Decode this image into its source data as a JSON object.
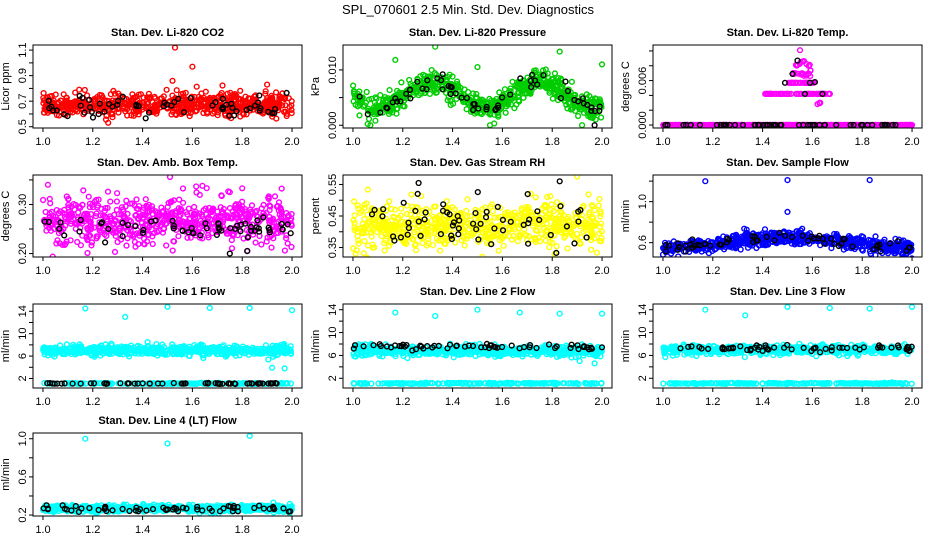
{
  "title": "SPL_070601  2.5 Min. Std. Dev. Diagnostics",
  "chart_data": [
    {
      "type": "scatter",
      "title": "Stan. Dev. Li-820 CO2",
      "ylabel": "Licor ppm",
      "xlim": [
        0.96,
        2.04
      ],
      "ylim": [
        0.49,
        1.14
      ],
      "xticks": [
        1.0,
        1.2,
        1.4,
        1.6,
        1.8,
        2.0
      ],
      "yticks": [
        0.5,
        0.6,
        0.7,
        0.8,
        0.9,
        1.0,
        1.1
      ],
      "yticklabels": {
        "0.5": "0.5",
        "0.7": "0.7",
        "0.9": "0.9",
        "1.1": "1.1"
      },
      "series": [
        {
          "name": "all",
          "color": "#ff0000",
          "clusters": [
            {
              "x": [
                1,
                2
              ],
              "n": 650,
              "mean": 0.67,
              "sd": 0.045
            }
          ],
          "outliers": [
            [
              1.53,
              1.12
            ],
            [
              1.6,
              0.97
            ],
            [
              1.52,
              0.86
            ],
            [
              1.9,
              0.83
            ]
          ]
        },
        {
          "name": "subset",
          "color": "#000000",
          "clusters": [
            {
              "x": [
                1,
                2
              ],
              "n": 60,
              "mean": 0.66,
              "sd": 0.045
            }
          ],
          "outliers": []
        }
      ]
    },
    {
      "type": "scatter",
      "title": "Stan. Dev. Li-820 Pressure",
      "ylabel": "kPa",
      "xlim": [
        0.96,
        2.04
      ],
      "ylim": [
        -0.0005,
        0.0145
      ],
      "xticks": [
        1.0,
        1.2,
        1.4,
        1.6,
        1.8,
        2.0
      ],
      "yticks": [
        0.0,
        0.005,
        0.01
      ],
      "yticklabels": {
        "0": "0.000",
        "0.01": "0.010"
      },
      "series": [
        {
          "name": "all",
          "color": "#00cd00",
          "clusters": [
            {
              "x": [
                1,
                2
              ],
              "n": 650,
              "mean": 0.0055,
              "sd": 0.0011,
              "wave": {
                "amp": 0.0025,
                "period": 0.43,
                "peak": 1.32
              }
            }
          ],
          "outliers": [
            [
              1.33,
              0.0142
            ],
            [
              1.17,
              0.0118
            ],
            [
              1.83,
              0.0133
            ],
            [
              2.0,
              0.011
            ],
            [
              1.5,
              0.0105
            ],
            [
              1.07,
              0.0
            ],
            [
              1.55,
              0.0
            ],
            [
              1.92,
              0.0
            ]
          ]
        },
        {
          "name": "subset",
          "color": "#000000",
          "clusters": [
            {
              "x": [
                1,
                2
              ],
              "n": 60,
              "mean": 0.0055,
              "sd": 0.0009,
              "wave": {
                "amp": 0.0025,
                "period": 0.43,
                "peak": 1.32
              }
            }
          ],
          "outliers": [
            [
              1.97,
              0.0
            ]
          ]
        }
      ]
    },
    {
      "type": "scatter",
      "title": "Stan. Dev. Li-820 Temp.",
      "ylabel": "degrees C",
      "xlim": [
        0.96,
        2.04
      ],
      "ylim": [
        -0.0004,
        0.0108
      ],
      "xticks": [
        1.0,
        1.2,
        1.4,
        1.6,
        1.8,
        2.0
      ],
      "yticks": [
        0.0,
        0.002,
        0.004,
        0.006,
        0.008,
        0.01
      ],
      "yticklabels": {
        "0": "0.000",
        "0.006": "0.006"
      },
      "series": [
        {
          "name": "all",
          "color": "#ff00ff",
          "clusters": [
            {
              "x": [
                1,
                2
              ],
              "n": 500,
              "mean": 0,
              "sd": 0
            },
            {
              "x": [
                1.41,
                1.67
              ],
              "n": 60,
              "mean": 0.0042,
              "sd": 0
            },
            {
              "x": [
                1.5,
                1.61
              ],
              "n": 40,
              "mean": 0.0057,
              "sd": 0
            },
            {
              "x": [
                1.52,
                1.6
              ],
              "n": 15,
              "mean": 0.0069,
              "sd": 0.0002
            },
            {
              "x": [
                1.53,
                1.59
              ],
              "n": 10,
              "mean": 0.0082,
              "sd": 0.0002
            },
            {
              "x": [
                1.62,
                1.64
              ],
              "n": 5,
              "mean": 0.003,
              "sd": 0.0001
            }
          ],
          "outliers": [
            [
              1.55,
              0.0101
            ]
          ]
        },
        {
          "name": "subset",
          "color": "#000000",
          "clusters": [
            {
              "x": [
                1,
                2
              ],
              "n": 55,
              "mean": 0,
              "sd": 0
            }
          ],
          "outliers": [
            [
              1.54,
              0.0087
            ],
            [
              1.52,
              0.0069
            ],
            [
              1.49,
              0.0057
            ],
            [
              1.59,
              0.0057
            ],
            [
              1.61,
              0.0058
            ],
            [
              1.57,
              0.0042
            ],
            [
              1.64,
              0.0042
            ]
          ]
        }
      ]
    },
    {
      "type": "scatter",
      "title": "Stan. Dev. Amb. Box Temp.",
      "ylabel": "degrees C",
      "xlim": [
        0.96,
        2.04
      ],
      "ylim": [
        0.193,
        0.36
      ],
      "xticks": [
        1.0,
        1.2,
        1.4,
        1.6,
        1.8,
        2.0
      ],
      "yticks": [
        0.2,
        0.25,
        0.3,
        0.35
      ],
      "yticklabels": {
        "0.2": "0.20",
        "0.3": "0.30"
      },
      "series": [
        {
          "name": "all",
          "color": "#ff00ff",
          "clusters": [
            {
              "x": [
                1,
                2
              ],
              "n": 650,
              "mean": 0.267,
              "sd": 0.024
            }
          ],
          "outliers": [
            [
              1.02,
              0.34
            ],
            [
              1.51,
              0.356
            ],
            [
              1.64,
              0.338
            ],
            [
              1.8,
              0.333
            ]
          ]
        },
        {
          "name": "subset",
          "color": "#000000",
          "clusters": [
            {
              "x": [
                1,
                2
              ],
              "n": 60,
              "mean": 0.25,
              "sd": 0.012
            }
          ],
          "outliers": [
            [
              1.75,
              0.2
            ],
            [
              1.82,
              0.205
            ]
          ]
        }
      ]
    },
    {
      "type": "scatter",
      "title": "Stan. Dev. Gas Stream RH",
      "ylabel": "percent",
      "xlim": [
        0.96,
        2.04
      ],
      "ylim": [
        0.32,
        0.58
      ],
      "xticks": [
        1.0,
        1.2,
        1.4,
        1.6,
        1.8,
        2.0
      ],
      "yticks": [
        0.35,
        0.4,
        0.45,
        0.5,
        0.55
      ],
      "yticklabels": {
        "0.35": "0.35",
        "0.45": "0.45",
        "0.55": "0.55"
      },
      "series": [
        {
          "name": "all",
          "color": "#ffff00",
          "clusters": [
            {
              "x": [
                1,
                2
              ],
              "n": 650,
              "mean": 0.42,
              "sd": 0.035
            }
          ],
          "outliers": [
            [
              1.9,
              0.575
            ],
            [
              1.81,
              0.33
            ],
            [
              1.35,
              0.34
            ]
          ]
        },
        {
          "name": "subset",
          "color": "#000000",
          "clusters": [
            {
              "x": [
                1,
                2
              ],
              "n": 60,
              "mean": 0.425,
              "sd": 0.04
            }
          ],
          "outliers": [
            [
              1.83,
              0.56
            ],
            [
              1.26,
              0.52
            ]
          ]
        }
      ]
    },
    {
      "type": "scatter",
      "title": "Stan. Dev. Sample Flow",
      "ylabel": "ml/min",
      "xlim": [
        0.96,
        2.04
      ],
      "ylim": [
        0.46,
        1.26
      ],
      "xticks": [
        1.0,
        1.2,
        1.4,
        1.6,
        1.8,
        2.0
      ],
      "yticks": [
        0.6,
        0.8,
        1.0,
        1.2
      ],
      "yticklabels": {
        "0.6": "0.6",
        "1": "1.0"
      },
      "series": [
        {
          "name": "all",
          "color": "#0000ff",
          "clusters": [
            {
              "x": [
                1,
                2
              ],
              "n": 650,
              "mean": 0.6,
              "sd": 0.035,
              "wave": {
                "amp": 0.05,
                "period": 1.0,
                "peak": 1.5
              }
            }
          ],
          "outliers": [
            [
              1.17,
              1.2
            ],
            [
              1.5,
              1.21
            ],
            [
              1.83,
              1.21
            ],
            [
              1.5,
              0.9
            ]
          ]
        },
        {
          "name": "subset",
          "color": "#000000",
          "clusters": [
            {
              "x": [
                1,
                2
              ],
              "n": 60,
              "mean": 0.6,
              "sd": 0.03,
              "wave": {
                "amp": 0.05,
                "period": 1.0,
                "peak": 1.5
              }
            }
          ],
          "outliers": []
        }
      ]
    },
    {
      "type": "scatter",
      "title": "Stan. Dev. Line 1 Flow",
      "ylabel": "ml/min",
      "xlim": [
        0.96,
        2.04
      ],
      "ylim": [
        0.3,
        15.3
      ],
      "xticks": [
        1.0,
        1.2,
        1.4,
        1.6,
        1.8,
        2.0
      ],
      "yticks": [
        2,
        4,
        6,
        8,
        10,
        12,
        14
      ],
      "yticklabels": {
        "2": "2",
        "6": "6",
        "10": "10",
        "14": "14"
      },
      "series": [
        {
          "name": "all",
          "color": "#00ffff",
          "clusters": [
            {
              "x": [
                1,
                2
              ],
              "n": 600,
              "mean": 7.0,
              "sd": 0.45
            },
            {
              "x": [
                1,
                2
              ],
              "n": 200,
              "mean": 1.1,
              "sd": 0.05
            }
          ],
          "outliers": [
            [
              1.17,
              14.5
            ],
            [
              1.33,
              13.0
            ],
            [
              1.5,
              14.8
            ],
            [
              1.67,
              14.6
            ],
            [
              1.83,
              14.6
            ],
            [
              2.0,
              14.2
            ],
            [
              1.92,
              3.9
            ],
            [
              1.97,
              3.8
            ],
            [
              1.42,
              8.5
            ]
          ]
        },
        {
          "name": "subset",
          "color": "#000000",
          "clusters": [
            {
              "x": [
                1,
                2
              ],
              "n": 60,
              "mean": 1.1,
              "sd": 0.04
            }
          ],
          "outliers": []
        }
      ]
    },
    {
      "type": "scatter",
      "title": "Stan. Dev. Line 2 Flow",
      "ylabel": "ml/min",
      "xlim": [
        0.96,
        2.04
      ],
      "ylim": [
        0.3,
        15.0
      ],
      "xticks": [
        1.0,
        1.2,
        1.4,
        1.6,
        1.8,
        2.0
      ],
      "yticks": [
        2,
        4,
        6,
        8,
        10,
        12,
        14
      ],
      "yticklabels": {
        "2": "2",
        "6": "6",
        "10": "10",
        "14": "14"
      },
      "series": [
        {
          "name": "all",
          "color": "#00ffff",
          "clusters": [
            {
              "x": [
                1,
                2
              ],
              "n": 600,
              "mean": 6.8,
              "sd": 0.45
            },
            {
              "x": [
                1,
                2
              ],
              "n": 200,
              "mean": 1.1,
              "sd": 0.05
            }
          ],
          "outliers": [
            [
              1.17,
              13.5
            ],
            [
              1.33,
              12.9
            ],
            [
              1.5,
              14.0
            ],
            [
              1.67,
              13.5
            ],
            [
              1.83,
              13.3
            ],
            [
              2.0,
              13.3
            ],
            [
              1.91,
              5.0
            ],
            [
              1.97,
              4.6
            ]
          ]
        },
        {
          "name": "subset",
          "color": "#000000",
          "clusters": [
            {
              "x": [
                1,
                2
              ],
              "n": 60,
              "mean": 7.5,
              "sd": 0.25
            }
          ],
          "outliers": []
        }
      ]
    },
    {
      "type": "scatter",
      "title": "Stan. Dev. Line 3 Flow",
      "ylabel": "ml/min",
      "xlim": [
        0.96,
        2.04
      ],
      "ylim": [
        0.3,
        15.0
      ],
      "xticks": [
        1.0,
        1.2,
        1.4,
        1.6,
        1.8,
        2.0
      ],
      "yticks": [
        2,
        4,
        6,
        8,
        10,
        12,
        14
      ],
      "yticklabels": {
        "2": "2",
        "6": "6",
        "10": "10",
        "14": "14"
      },
      "series": [
        {
          "name": "all",
          "color": "#00ffff",
          "clusters": [
            {
              "x": [
                1,
                2
              ],
              "n": 600,
              "mean": 7.0,
              "sd": 0.4
            },
            {
              "x": [
                1,
                2
              ],
              "n": 200,
              "mean": 1.1,
              "sd": 0.05
            }
          ],
          "outliers": [
            [
              1.17,
              14.0
            ],
            [
              1.33,
              13.0
            ],
            [
              1.5,
              14.5
            ],
            [
              1.67,
              14.3
            ],
            [
              1.83,
              14.2
            ],
            [
              2.0,
              14.5
            ]
          ]
        },
        {
          "name": "subset",
          "color": "#000000",
          "clusters": [
            {
              "x": [
                1,
                2
              ],
              "n": 60,
              "mean": 7.3,
              "sd": 0.25
            }
          ],
          "outliers": []
        }
      ]
    },
    {
      "type": "scatter",
      "title": "Stan. Dev. Line 4 (LT) Flow",
      "ylabel": "ml/min",
      "xlim": [
        0.96,
        2.04
      ],
      "ylim": [
        0.19,
        1.06
      ],
      "xticks": [
        1.0,
        1.2,
        1.4,
        1.6,
        1.8,
        2.0
      ],
      "yticks": [
        0.2,
        0.4,
        0.6,
        0.8,
        1.0
      ],
      "yticklabels": {
        "0.2": "0.2",
        "0.6": "0.6",
        "1": "1.0"
      },
      "series": [
        {
          "name": "all",
          "color": "#00ffff",
          "clusters": [
            {
              "x": [
                1,
                2
              ],
              "n": 650,
              "mean": 0.27,
              "sd": 0.018
            }
          ],
          "outliers": [
            [
              1.17,
              1.0
            ],
            [
              1.5,
              0.95
            ],
            [
              1.83,
              1.03
            ]
          ]
        },
        {
          "name": "subset",
          "color": "#000000",
          "clusters": [
            {
              "x": [
                1,
                2
              ],
              "n": 60,
              "mean": 0.265,
              "sd": 0.018
            }
          ],
          "outliers": []
        }
      ]
    }
  ]
}
